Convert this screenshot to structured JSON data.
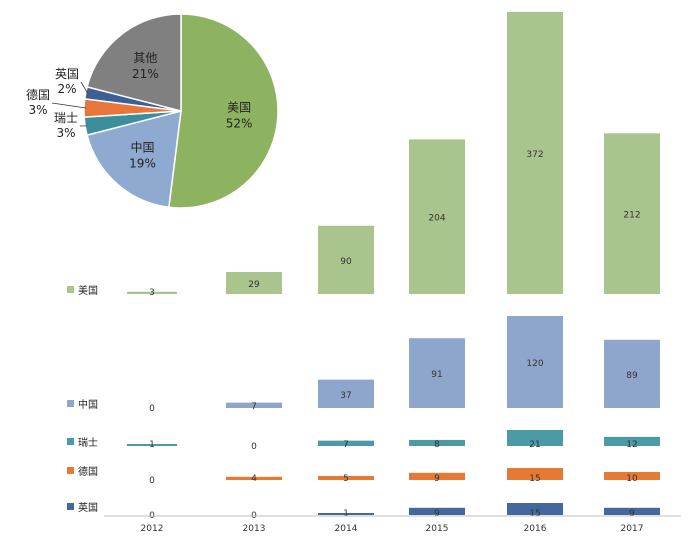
{
  "chart_data": [
    {
      "type": "pie",
      "slices": [
        {
          "label": "美国",
          "percent": 52,
          "color": "#8db361"
        },
        {
          "label": "中国",
          "percent": 19,
          "color": "#8eaad0"
        },
        {
          "label": "瑞士",
          "percent": 3,
          "color": "#3b8f9c"
        },
        {
          "label": "德国",
          "percent": 3,
          "color": "#e8763a"
        },
        {
          "label": "英国",
          "percent": 2,
          "color": "#3d5f94"
        },
        {
          "label": "其他",
          "percent": 21,
          "color": "#808080"
        }
      ],
      "value_labels": [
        "52%",
        "19%",
        "3%",
        "3%",
        "2%",
        "21%"
      ]
    },
    {
      "type": "bar",
      "layout": "stacked-panels",
      "categories": [
        "2012",
        "2013",
        "2014",
        "2015",
        "2016",
        "2017"
      ],
      "series": [
        {
          "name": "美国",
          "values": [
            3,
            29,
            90,
            204,
            372,
            212
          ],
          "labels": [
            "3",
            "29",
            "90",
            "204",
            "372",
            "212"
          ],
          "color": "#a9c48c"
        },
        {
          "name": "中国",
          "values": [
            0,
            7,
            37,
            91,
            120,
            89
          ],
          "labels": [
            "0",
            "7",
            "37",
            "91",
            "120",
            "89"
          ],
          "color": "#8fa6cc"
        },
        {
          "name": "瑞士",
          "values": [
            1,
            0,
            7,
            8,
            21,
            12
          ],
          "labels": [
            "1",
            "0",
            "7",
            "8",
            "21",
            "12"
          ],
          "color": "#4b9aa6"
        },
        {
          "name": "德国",
          "values": [
            0,
            4,
            5,
            9,
            15,
            10
          ],
          "labels": [
            "0",
            "4",
            "5",
            "9",
            "15",
            "10"
          ],
          "color": "#e57a35"
        },
        {
          "name": "英国",
          "values": [
            0,
            0,
            1,
            9,
            15,
            9
          ],
          "labels": [
            "0",
            "0",
            "1",
            "9",
            "15",
            "9"
          ],
          "color": "#44689e"
        }
      ],
      "grid": false
    }
  ]
}
